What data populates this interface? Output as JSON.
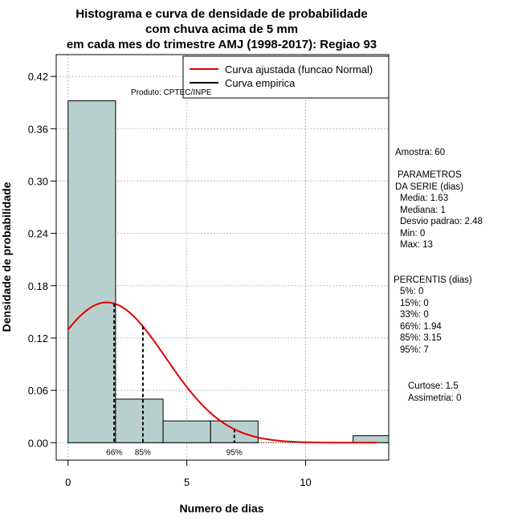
{
  "chart_data": {
    "type": "histogram",
    "title_lines": [
      "Histograma e curva de densidade de probabilidade",
      "com chuva acima de 5 mm",
      "em cada mes do trimestre AMJ (1998-2017): Regiao 93"
    ],
    "xlabel": "Numero de dias",
    "ylabel": "Densidade de probabilidade",
    "xlim": [
      -0.5,
      13.5
    ],
    "ylim": [
      -0.02,
      0.445
    ],
    "x_ticks": [
      0,
      5,
      10
    ],
    "x_tick_labels": [
      "0",
      "5",
      "10"
    ],
    "y_ticks": [
      0.0,
      0.06,
      0.12,
      0.18,
      0.24,
      0.3,
      0.36,
      0.42
    ],
    "y_tick_labels": [
      "0.00",
      "0.06",
      "0.12",
      "0.18",
      "0.24",
      "0.30",
      "0.36",
      "0.42"
    ],
    "bars": [
      {
        "x0": 0,
        "x1": 2,
        "density": 0.392
      },
      {
        "x0": 2,
        "x1": 4,
        "density": 0.05
      },
      {
        "x0": 4,
        "x1": 6,
        "density": 0.025
      },
      {
        "x0": 6,
        "x1": 8,
        "density": 0.025
      },
      {
        "x0": 8,
        "x1": 10,
        "density": 0.0
      },
      {
        "x0": 10,
        "x1": 12,
        "density": 0.0
      },
      {
        "x0": 12,
        "x1": 14,
        "density": 0.008
      }
    ],
    "bar_color": "#b8d0cd",
    "curve_color": "#e00000",
    "normal_fit": {
      "mean": 1.63,
      "sd": 2.48,
      "x_from": 0,
      "x_to": 13
    },
    "percentile_markers": [
      {
        "label": "66%",
        "x": 1.94
      },
      {
        "label": "85%",
        "x": 3.15
      },
      {
        "label": "95%",
        "x": 7
      }
    ],
    "legend": [
      {
        "label": "Curva ajustada (funcao Normal)",
        "color": "#e00000"
      },
      {
        "label": "Curva empirica",
        "color": "#000000"
      }
    ],
    "product_label": "Produto: CPTEC/INPE"
  },
  "stats_panel": {
    "sample": "Amostra: 60",
    "params_title_1": "PARAMETROS",
    "params_title_2": "DA SERIE (dias)",
    "params": [
      "Media: 1.63",
      "Mediana: 1",
      "Desvio padrao: 2.48",
      "Min: 0",
      "Max: 13"
    ],
    "percentis_title": "PERCENTIS (dias)",
    "percentis": [
      "5%: 0",
      "15%: 0",
      "33%: 0",
      "66%: 1.94",
      "85%: 3.15",
      "95%: 7"
    ],
    "curtose": "Curtose: 1.5",
    "assimetria": "Assimetria: 0"
  }
}
